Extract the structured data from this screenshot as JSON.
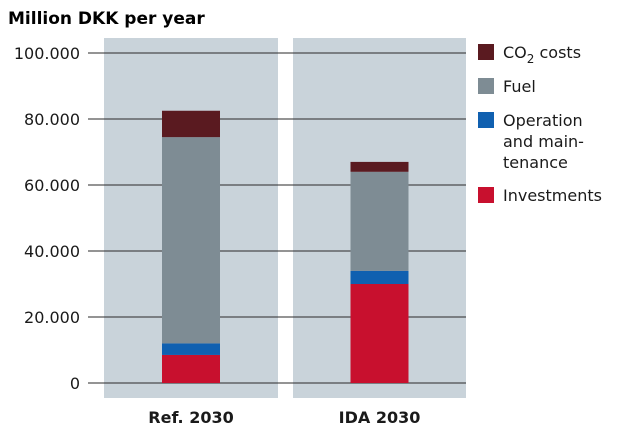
{
  "chart_data": {
    "type": "bar",
    "stacked": true,
    "title": "",
    "ylabel": "Million DKK per year",
    "xlabel": "",
    "ylim": [
      0,
      100000
    ],
    "yticks": [
      0,
      20000,
      40000,
      60000,
      80000,
      100000
    ],
    "ytick_labels": [
      "0",
      "20.000",
      "40.000",
      "60.000",
      "80.000",
      "100.000"
    ],
    "categories": [
      "Ref. 2030",
      "IDA 2030"
    ],
    "series": [
      {
        "name": "Investments",
        "color": "#c8102e",
        "values": [
          8500,
          30000
        ]
      },
      {
        "name": "Operation and maintenance",
        "color": "#1060b0",
        "values": [
          3500,
          4000
        ]
      },
      {
        "name": "Fuel",
        "color": "#7e8c94",
        "values": [
          62500,
          30000
        ]
      },
      {
        "name": "CO2 costs",
        "color": "#5a1a20",
        "values": [
          8000,
          3000
        ]
      }
    ],
    "legend": {
      "placement": "right",
      "entries": [
        {
          "series": "CO2 costs",
          "lines": [
            "CO",
            "2",
            " costs"
          ]
        },
        {
          "series": "Fuel",
          "lines": [
            "Fuel"
          ]
        },
        {
          "series": "Operation and maintenance",
          "lines": [
            "Operation",
            "and main-",
            "tenance"
          ]
        },
        {
          "series": "Investments",
          "lines": [
            "Investments"
          ]
        }
      ]
    },
    "grid": true,
    "panel_color": "#c9d3da",
    "grid_color": "#2a2a2a"
  }
}
